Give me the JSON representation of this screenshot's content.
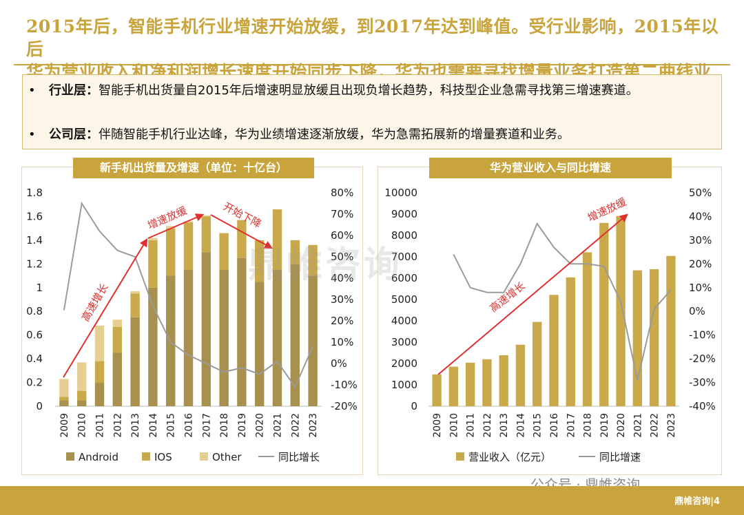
{
  "header": {
    "title_line1": "2015年后，智能手机行业增速开始放缓，到2017年达到峰值。受行业影响，2015年以后",
    "title_line2": "华为营业收入和净利润增长速度开始同步下降，华为也需要寻找增量业务打造第二曲线业务"
  },
  "summary": {
    "bullet_symbol": "•",
    "item1_title": "行业层：",
    "item1_text": "智能手机出货量自2015年后增速明显放缓且出现负增长趋势，科技型企业急需寻找第三增速赛道。",
    "item2_title": "公司层：",
    "item2_text": "伴随智能手机行业达峰，华为业绩增速逐渐放缓，华为急需拓展新的增量赛道和业务。"
  },
  "watermark": "鼎帷咨询",
  "wechat_label": "公众号 · 鼎帷咨询",
  "footer_brand": "鼎帷咨询|4",
  "colors": {
    "gold": "#C9A43C",
    "android": "#A8904F",
    "ios": "#C9A94A",
    "other": "#E6CF95",
    "line": "#9A9A9A",
    "arrow": "#E0302E"
  },
  "chart_data": [
    {
      "type": "bar",
      "title": "新手机出货量及增速（单位：十亿台）",
      "stacked": true,
      "categories": [
        "2009",
        "2010",
        "2011",
        "2012",
        "2013",
        "2014",
        "2015",
        "2016",
        "2017",
        "2018",
        "2019",
        "2020",
        "2021",
        "2022",
        "2023"
      ],
      "series": [
        {
          "name": "Android",
          "values": [
            0.05,
            0.05,
            0.2,
            0.45,
            0.75,
            1.0,
            1.1,
            1.15,
            1.3,
            1.15,
            1.25,
            1.05,
            1.15,
            1.2,
            1.1
          ]
        },
        {
          "name": "IOS",
          "values": [
            0.03,
            0.08,
            0.18,
            0.22,
            0.2,
            0.4,
            0.4,
            0.4,
            0.3,
            0.31,
            0.32,
            0.35,
            0.51,
            0.2,
            0.26
          ]
        },
        {
          "name": "Other",
          "values": [
            0.15,
            0.24,
            0.3,
            0.06,
            0.02,
            0.02,
            0.02,
            0.01,
            0.01,
            0.0,
            0.0,
            0.0,
            0.0,
            0.0,
            0.0
          ]
        }
      ],
      "line": {
        "name": "同比增长",
        "values": [
          25,
          75,
          62,
          53,
          50,
          27,
          10,
          4,
          0,
          -4,
          -2,
          -5,
          1,
          -11,
          8
        ]
      },
      "ylim": [
        0,
        1.8
      ],
      "yticks": [
        "0",
        "0.2",
        "0.4",
        "0.6",
        "0.8",
        "1",
        "1.2",
        "1.4",
        "1.6",
        "1.8"
      ],
      "y2lim": [
        -20,
        80
      ],
      "y2ticks": [
        "-20%",
        "-10%",
        "0%",
        "10%",
        "20%",
        "30%",
        "40%",
        "50%",
        "60%",
        "70%",
        "80%"
      ],
      "legend": [
        "Android",
        "IOS",
        "Other",
        "同比增长"
      ],
      "annotations": [
        "高速增长",
        "增速放缓",
        "开始下降"
      ]
    },
    {
      "type": "bar",
      "title": "华为营业收入与同比增速",
      "categories": [
        "2009",
        "2010",
        "2011",
        "2012",
        "2013",
        "2014",
        "2015",
        "2016",
        "2017",
        "2018",
        "2019",
        "2020",
        "2021",
        "2022",
        "2023"
      ],
      "series": [
        {
          "name": "营业收入（亿元）",
          "values": [
            1491,
            1852,
            2039,
            2202,
            2390,
            2882,
            3950,
            5216,
            6036,
            7212,
            8588,
            8914,
            6368,
            6423,
            7042
          ]
        }
      ],
      "line": {
        "name": "同比增速",
        "values": [
          null,
          24,
          10,
          8,
          8,
          20,
          37,
          27,
          20,
          20,
          19,
          4,
          -29,
          1,
          9
        ]
      },
      "ylim": [
        0,
        10000
      ],
      "yticks": [
        "0",
        "1000",
        "2000",
        "3000",
        "4000",
        "5000",
        "6000",
        "7000",
        "8000",
        "9000",
        "10000"
      ],
      "y2lim": [
        -40,
        50
      ],
      "y2ticks": [
        "-40%",
        "-30%",
        "-20%",
        "-10%",
        "0%",
        "10%",
        "20%",
        "30%",
        "40%",
        "50%"
      ],
      "legend": [
        "营业收入（亿元）",
        "同比增速"
      ],
      "annotations": [
        "高速增长",
        "增速放缓"
      ]
    }
  ]
}
